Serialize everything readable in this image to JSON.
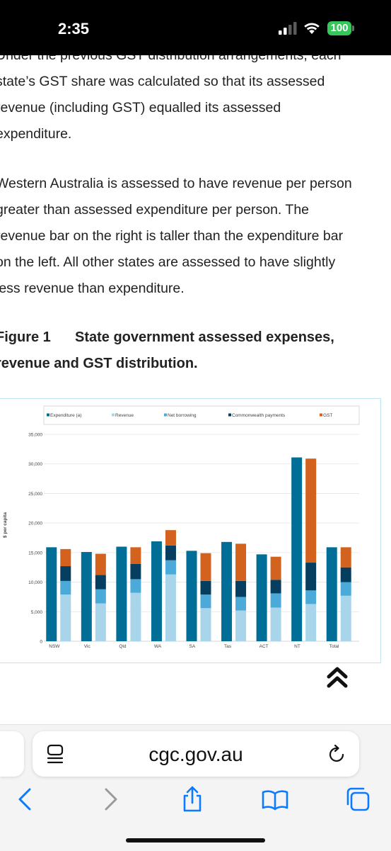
{
  "status_bar": {
    "time": "2:35",
    "battery": "100"
  },
  "article": {
    "para1": [
      "Under the previous GST distribution arrangements, each",
      "state’s GST share was calculated so that its assessed",
      "revenue (including GST) equalled its assessed",
      "expenditure."
    ],
    "para2": [
      "Western Australia is assessed to have revenue per person",
      "greater than assessed expenditure per person. The",
      "revenue bar on the right is taller than the expenditure bar",
      "on the left. All other states are assessed to have slightly",
      "less revenue than expenditure."
    ],
    "figure_label": "Figure 1",
    "figure_title_line1": "State government assessed expenses,",
    "figure_title_line2": "revenue and GST distribution."
  },
  "chart_data": {
    "type": "bar",
    "ylabel": "$ per capita",
    "ylim": [
      0,
      35000
    ],
    "y_ticks": [
      "0",
      "5,000",
      "10,000",
      "15,000",
      "20,000",
      "25,000",
      "30,000",
      "35,000"
    ],
    "categories": [
      "NSW",
      "Vic",
      "Qld",
      "WA",
      "SA",
      "Tas",
      "ACT",
      "NT",
      "Total"
    ],
    "legend_position": "top",
    "grid": true,
    "series": [
      {
        "name": "Expenditure (a)",
        "color": "#006e96",
        "stack": "expenditure",
        "values": [
          15900,
          15100,
          16000,
          16900,
          15300,
          16800,
          14700,
          31100,
          15900
        ]
      },
      {
        "name": "Revenue",
        "color": "#a9d5ea",
        "stack": "revenue",
        "values": [
          7900,
          6400,
          8200,
          11300,
          5600,
          5200,
          5700,
          6300,
          7700
        ]
      },
      {
        "name": "Net borrowing",
        "color": "#4baad8",
        "stack": "revenue",
        "values": [
          2300,
          2400,
          2300,
          2400,
          2300,
          2300,
          2400,
          2300,
          2300
        ]
      },
      {
        "name": "Commonwealth payments",
        "color": "#053e5e",
        "stack": "revenue",
        "values": [
          2500,
          2400,
          2600,
          2500,
          2300,
          2700,
          2300,
          4700,
          2500
        ]
      },
      {
        "name": "GST",
        "color": "#d2621e",
        "stack": "revenue",
        "values": [
          2900,
          3600,
          2800,
          2600,
          4700,
          6300,
          3900,
          17600,
          3400
        ]
      }
    ]
  },
  "browser": {
    "url": "cgc.gov.au"
  },
  "colors": {
    "status_bg": "#000000",
    "battery": "#34c759",
    "link_blue": "#0a7aff"
  }
}
